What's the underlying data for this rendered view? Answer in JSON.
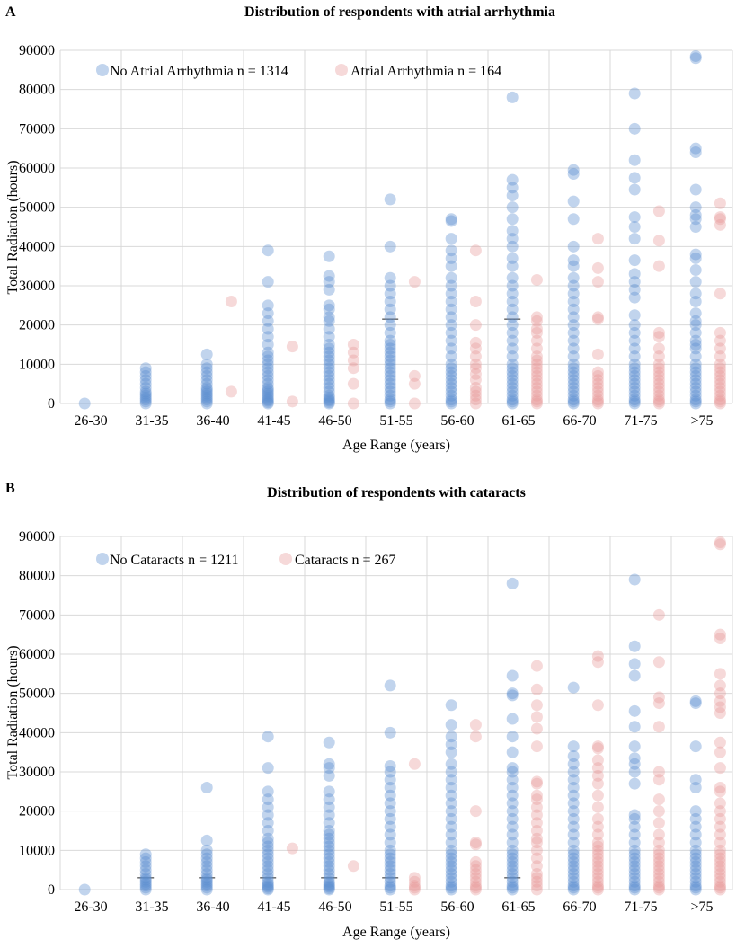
{
  "chart_data": [
    {
      "panel_label": "A",
      "type": "scatter",
      "title": "Distribution of respondents with atrial arrhythmia",
      "xlabel": "Age Range (years)",
      "ylabel": "Total Radiation (hours)",
      "ylim": [
        0,
        90000
      ],
      "yticks": [
        "0",
        "10000",
        "20000",
        "30000",
        "40000",
        "50000",
        "60000",
        "70000",
        "80000",
        "90000"
      ],
      "categories": [
        "26-30",
        "31-35",
        "36-40",
        "41-45",
        "46-50",
        "51-55",
        "56-60",
        "61-65",
        "66-70",
        "71-75",
        ">75"
      ],
      "grid": true,
      "legend_position": "top-left",
      "series": [
        {
          "name": "No Atrial Arrhythmia n = 1314",
          "color": "#5b8fd0",
          "offset": -0.1,
          "values": [
            [
              0
            ],
            [
              0,
              500,
              1000,
              1500,
              2000,
              2500,
              3000,
              4000,
              5000,
              6000,
              7000,
              8000,
              9000
            ],
            [
              0,
              500,
              1000,
              1500,
              2000,
              2500,
              3000,
              3500,
              4000,
              5000,
              6000,
              7000,
              8000,
              9000,
              10000,
              12500
            ],
            [
              0,
              300,
              700,
              1000,
              1500,
              2000,
              2500,
              3000,
              3500,
              4000,
              5000,
              6000,
              7000,
              8000,
              9000,
              10000,
              11000,
              12000,
              13000,
              15000,
              17000,
              19000,
              21000,
              23000,
              25000,
              31000,
              39000
            ],
            [
              0,
              300,
              700,
              1000,
              1500,
              2000,
              3000,
              4000,
              5000,
              6000,
              7000,
              8000,
              9000,
              10000,
              11000,
              12000,
              13000,
              14000,
              15000,
              17000,
              19000,
              21000,
              22000,
              24000,
              25000,
              29000,
              31000,
              32500,
              37500
            ],
            [
              0,
              500,
              1000,
              2000,
              3000,
              4000,
              5000,
              6000,
              7000,
              8000,
              9000,
              10000,
              11000,
              12000,
              13000,
              14000,
              15000,
              16000,
              18000,
              20000,
              22000,
              24000,
              26000,
              28000,
              30000,
              32000,
              40000,
              52000
            ],
            [
              0,
              500,
              1000,
              2000,
              3000,
              4000,
              5000,
              6000,
              7000,
              8000,
              9000,
              10000,
              12000,
              14000,
              16000,
              18000,
              20000,
              22000,
              24000,
              26000,
              28000,
              30000,
              32000,
              35000,
              37000,
              39000,
              42000,
              46500,
              47000
            ],
            [
              0,
              500,
              1000,
              2000,
              3000,
              4000,
              5000,
              6000,
              7000,
              8000,
              9000,
              10000,
              12000,
              14000,
              16000,
              18000,
              20000,
              22000,
              24000,
              26000,
              28000,
              30000,
              32000,
              35000,
              37000,
              40000,
              42000,
              44000,
              47000,
              50000,
              53000,
              55000,
              57000,
              78000
            ],
            [
              0,
              500,
              1000,
              2000,
              3000,
              4000,
              5000,
              6000,
              7000,
              8000,
              9000,
              10000,
              12000,
              14000,
              16000,
              18000,
              20000,
              22000,
              24000,
              26000,
              28000,
              30000,
              32000,
              35000,
              36500,
              40000,
              47000,
              51500,
              58500,
              59500
            ],
            [
              0,
              500,
              1000,
              2000,
              3000,
              4000,
              5000,
              6000,
              7000,
              8000,
              9000,
              10000,
              12000,
              14000,
              16000,
              18000,
              20000,
              22500,
              27000,
              29000,
              31000,
              33000,
              36500,
              42000,
              45000,
              47500,
              54500,
              57500,
              62000,
              70000,
              79000
            ],
            [
              0,
              500,
              1000,
              2000,
              3000,
              4000,
              5000,
              6000,
              7000,
              8000,
              9000,
              10000,
              12000,
              14000,
              15000,
              16000,
              18000,
              20000,
              21000,
              23000,
              26000,
              28000,
              31000,
              34000,
              37000,
              38000,
              45000,
              47000,
              48000,
              50000,
              54500,
              64000,
              65000,
              88000,
              88500
            ]
          ]
        },
        {
          "name": "Atrial Arrhythmia n = 164",
          "color": "#e79c9c",
          "offset": 0.3,
          "values": [
            [],
            [],
            [
              3000,
              26000
            ],
            [
              500,
              14500
            ],
            [
              0,
              5000,
              9000,
              11000,
              13000,
              15000
            ],
            [
              0,
              5000,
              7000,
              31000
            ],
            [
              0,
              1000,
              2000,
              3000,
              4000,
              6000,
              7500,
              9000,
              10000,
              12000,
              14000,
              15500,
              20000,
              26000,
              39000
            ],
            [
              0,
              500,
              1000,
              2000,
              3000,
              4000,
              5000,
              6000,
              7000,
              8000,
              9000,
              10000,
              11000,
              12000,
              14000,
              16000,
              18000,
              19000,
              21000,
              22000,
              31500
            ],
            [
              0,
              500,
              1000,
              2000,
              3000,
              4000,
              5000,
              6000,
              7000,
              8000,
              12500,
              21500,
              22000,
              31000,
              34500,
              42000
            ],
            [
              0,
              500,
              1000,
              2000,
              3000,
              4000,
              5000,
              6000,
              7000,
              8000,
              9000,
              10000,
              12000,
              14000,
              17000,
              18000,
              35000,
              41500,
              49000
            ],
            [
              0,
              500,
              1000,
              2000,
              3000,
              4000,
              5000,
              6000,
              7000,
              8000,
              9000,
              10000,
              12000,
              14000,
              16000,
              18000,
              28000,
              45500,
              47000,
              47500,
              51000
            ]
          ]
        }
      ],
      "medians": [
        null,
        null,
        null,
        null,
        null,
        21500,
        null,
        21500,
        null,
        null,
        null
      ]
    },
    {
      "panel_label": "B",
      "type": "scatter",
      "title": "Distribution of respondents with cataracts",
      "xlabel": "Age Range (years)",
      "ylabel": "Total Radiation (hours)",
      "ylim": [
        0,
        90000
      ],
      "yticks": [
        "0",
        "10000",
        "20000",
        "30000",
        "40000",
        "50000",
        "60000",
        "70000",
        "80000",
        "90000"
      ],
      "categories": [
        "26-30",
        "31-35",
        "36-40",
        "41-45",
        "46-50",
        "51-55",
        "56-60",
        "61-65",
        "66-70",
        "71-75",
        ">75"
      ],
      "grid": true,
      "legend_position": "top-left",
      "series": [
        {
          "name": "No Cataracts n = 1211",
          "color": "#5b8fd0",
          "offset": -0.1,
          "values": [
            [
              0
            ],
            [
              0,
              500,
              1000,
              1500,
              2000,
              2500,
              3000,
              4000,
              5000,
              6000,
              7000,
              8000,
              9000
            ],
            [
              0,
              500,
              1000,
              1500,
              2000,
              2500,
              3000,
              4000,
              5000,
              6000,
              7000,
              8000,
              9000,
              10000,
              12500,
              26000
            ],
            [
              0,
              300,
              700,
              1000,
              1500,
              2000,
              3000,
              4000,
              5000,
              6000,
              7000,
              8000,
              9000,
              10000,
              11000,
              12000,
              13000,
              15000,
              17000,
              19000,
              21000,
              23000,
              25000,
              31000,
              39000
            ],
            [
              0,
              300,
              700,
              1000,
              1500,
              2000,
              3000,
              4000,
              5000,
              6000,
              7000,
              8000,
              9000,
              10000,
              11000,
              12000,
              13000,
              14000,
              15000,
              17000,
              19000,
              21000,
              23000,
              25000,
              29000,
              31000,
              32000,
              37500
            ],
            [
              0,
              500,
              1000,
              2000,
              3000,
              4000,
              5000,
              6000,
              7000,
              8000,
              9000,
              10000,
              12000,
              14000,
              16000,
              18000,
              20000,
              22000,
              24000,
              26000,
              28000,
              30000,
              31500,
              40000,
              52000
            ],
            [
              0,
              500,
              1000,
              2000,
              3000,
              4000,
              5000,
              6000,
              7000,
              8000,
              9000,
              10000,
              12000,
              14000,
              16000,
              18000,
              20000,
              22000,
              24000,
              26000,
              28000,
              30000,
              32000,
              35000,
              37000,
              39000,
              42000,
              47000
            ],
            [
              0,
              500,
              1000,
              2000,
              3000,
              4000,
              5000,
              6000,
              7000,
              8000,
              9000,
              10000,
              12000,
              14000,
              16000,
              18000,
              20000,
              22000,
              24000,
              26000,
              28000,
              30000,
              31000,
              35000,
              39000,
              43500,
              49500,
              50000,
              54500,
              78000
            ],
            [
              0,
              500,
              1000,
              2000,
              3000,
              4000,
              5000,
              6000,
              7000,
              8000,
              9000,
              10000,
              12000,
              14000,
              16000,
              18000,
              20000,
              22000,
              24000,
              26000,
              28000,
              30000,
              32000,
              34000,
              36500,
              51500
            ],
            [
              0,
              500,
              1000,
              2000,
              3000,
              4000,
              5000,
              6000,
              7000,
              8000,
              9000,
              10000,
              12000,
              14000,
              16000,
              18000,
              19000,
              27000,
              30000,
              32000,
              33500,
              36500,
              41500,
              45500,
              54500,
              57500,
              62000,
              79000
            ],
            [
              0,
              500,
              1000,
              2000,
              3000,
              4000,
              5000,
              6000,
              7000,
              8000,
              9000,
              10000,
              12000,
              14000,
              16000,
              18000,
              20000,
              26000,
              28000,
              36500,
              47500,
              48000
            ]
          ]
        },
        {
          "name": "Cataracts n = 267",
          "color": "#e79c9c",
          "offset": 0.3,
          "values": [
            [],
            [],
            [],
            [
              10500
            ],
            [
              6000
            ],
            [
              0,
              500,
              1000,
              2000,
              3000,
              32000
            ],
            [
              0,
              500,
              1000,
              2000,
              3000,
              4000,
              5000,
              6000,
              7000,
              11500,
              12000,
              20000,
              39000,
              42000
            ],
            [
              0,
              1000,
              2000,
              3000,
              4000,
              6000,
              8000,
              10000,
              12000,
              13000,
              15000,
              17000,
              19000,
              21000,
              23000,
              24000,
              27000,
              27500,
              36500,
              41000,
              44000,
              47000,
              51000,
              57000
            ],
            [
              0,
              500,
              1000,
              2000,
              3000,
              4000,
              5000,
              6000,
              7000,
              8000,
              9000,
              10000,
              11000,
              12000,
              14000,
              16000,
              18000,
              21000,
              24000,
              27000,
              29000,
              31000,
              33000,
              36500,
              36000,
              47000,
              58000,
              59500
            ],
            [
              0,
              500,
              1000,
              2000,
              3000,
              4000,
              5000,
              6000,
              7000,
              8000,
              9000,
              10000,
              12000,
              14000,
              17000,
              20000,
              23000,
              28000,
              30000,
              41500,
              47500,
              49000,
              58000,
              70000
            ],
            [
              0,
              500,
              1000,
              2000,
              3000,
              4000,
              5000,
              6000,
              7000,
              8000,
              9000,
              10000,
              12000,
              14000,
              16000,
              18000,
              20000,
              22000,
              25000,
              26000,
              31000,
              35000,
              37500,
              45000,
              46500,
              48000,
              50000,
              52000,
              55000,
              64000,
              65000,
              88000,
              88500
            ]
          ]
        }
      ],
      "medians": [
        null,
        3000,
        3000,
        3000,
        3000,
        3000,
        null,
        3000,
        null,
        null,
        null
      ]
    }
  ]
}
